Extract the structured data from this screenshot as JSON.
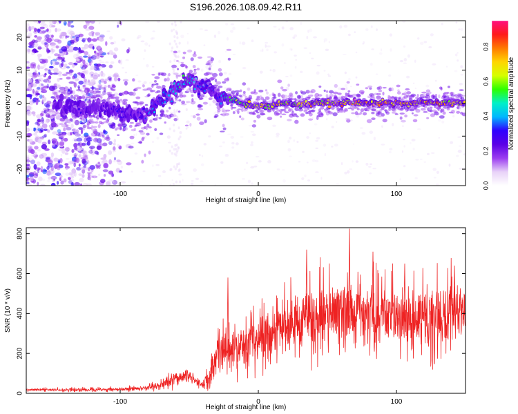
{
  "title": "S196.2026.108.09.42.R11",
  "chart_data": [
    {
      "type": "heatmap",
      "name": "spectrogram",
      "xlabel": "Height of straight line (km)",
      "ylabel": "Frequency (Hz)",
      "xlim": [
        -168,
        150
      ],
      "ylim": [
        -25,
        25
      ],
      "xticks": [
        -100,
        0,
        100
      ],
      "xtick_labels": [
        "-100",
        "0",
        "100"
      ],
      "yticks": [
        -20,
        -10,
        0,
        10,
        20
      ],
      "ytick_labels": [
        "-20",
        "-10",
        "0",
        "10",
        "20"
      ],
      "colorbar": {
        "label": "Normalized spectral amplitude",
        "range": [
          0,
          0.95
        ],
        "ticks": [
          0.0,
          0.2,
          0.4,
          0.6,
          0.8
        ],
        "tick_labels": [
          "0.0",
          "0.2",
          "0.4",
          "0.6",
          "0.8"
        ],
        "colormap": [
          "#ffffff",
          "#e8d2f8",
          "#9b3df0",
          "#5a00e6",
          "#2f00ff",
          "#00b7ff",
          "#00f0c8",
          "#2cff00",
          "#d6ff00",
          "#ffd500",
          "#ff7a00",
          "#ff1a1a",
          "#ff1080"
        ]
      },
      "ridge": {
        "x": [
          -138,
          -128,
          -118,
          -108,
          -98,
          -88,
          -80,
          -72,
          -65,
          -57,
          -50,
          -44,
          -38,
          -33,
          -28,
          -22,
          -15,
          -8,
          0,
          10,
          20,
          30,
          40,
          50,
          60,
          70,
          80,
          90,
          100,
          110,
          120,
          130,
          140,
          150
        ],
        "freq": [
          -1.5,
          -2,
          -1,
          -1.5,
          -3,
          -4.5,
          -3,
          0,
          3,
          5,
          7,
          6,
          5.5,
          4,
          2,
          1,
          0.5,
          -0.5,
          -1,
          -0.5,
          0,
          -0.5,
          0.2,
          0,
          0,
          0.2,
          0,
          0,
          0,
          0,
          0.3,
          0,
          0,
          0
        ],
        "amplitude": [
          0.25,
          0.3,
          0.25,
          0.3,
          0.35,
          0.3,
          0.45,
          0.45,
          0.5,
          0.55,
          0.6,
          0.45,
          0.4,
          0.35,
          0.4,
          0.6,
          0.7,
          0.75,
          0.8,
          0.8,
          0.85,
          0.8,
          0.85,
          0.85,
          0.9,
          0.9,
          0.9,
          0.95,
          0.9,
          0.85,
          0.9,
          0.9,
          0.85,
          0.9
        ]
      },
      "noise_region_x": [
        -168,
        -90
      ]
    },
    {
      "type": "line",
      "name": "snr",
      "xlabel": "Height of straight line (km)",
      "ylabel": "SNR (10 * v/v)",
      "xlim": [
        -168,
        150
      ],
      "ylim": [
        0,
        830
      ],
      "xticks": [
        -100,
        0,
        100
      ],
      "xtick_labels": [
        "-100",
        "0",
        "100"
      ],
      "yticks": [
        0,
        200,
        400,
        600,
        800
      ],
      "ytick_labels": [
        "0",
        "200",
        "400",
        "600",
        "800"
      ],
      "line_color": "#ee2222",
      "trend": {
        "x": [
          -168,
          -120,
          -100,
          -80,
          -70,
          -60,
          -50,
          -40,
          -35,
          -30,
          -25,
          -20,
          -10,
          0,
          10,
          20,
          30,
          40,
          50,
          60,
          70,
          80,
          90,
          100,
          110,
          120,
          130,
          140,
          150
        ],
        "mean": [
          18,
          18,
          20,
          28,
          45,
          75,
          90,
          40,
          70,
          180,
          220,
          200,
          240,
          270,
          300,
          340,
          370,
          390,
          400,
          410,
          400,
          390,
          400,
          390,
          380,
          390,
          400,
          410,
          400
        ],
        "spread": [
          8,
          8,
          10,
          12,
          25,
          45,
          40,
          25,
          70,
          120,
          140,
          110,
          120,
          130,
          150,
          170,
          180,
          190,
          180,
          200,
          190,
          180,
          170,
          170,
          170,
          180,
          190,
          170,
          160
        ]
      },
      "peaks": [
        {
          "x": -22,
          "y": 580
        },
        {
          "x": 35,
          "y": 720
        },
        {
          "x": 66,
          "y": 825
        },
        {
          "x": 83,
          "y": 710
        },
        {
          "x": 106,
          "y": 650
        },
        {
          "x": 142,
          "y": 640
        }
      ]
    }
  ]
}
